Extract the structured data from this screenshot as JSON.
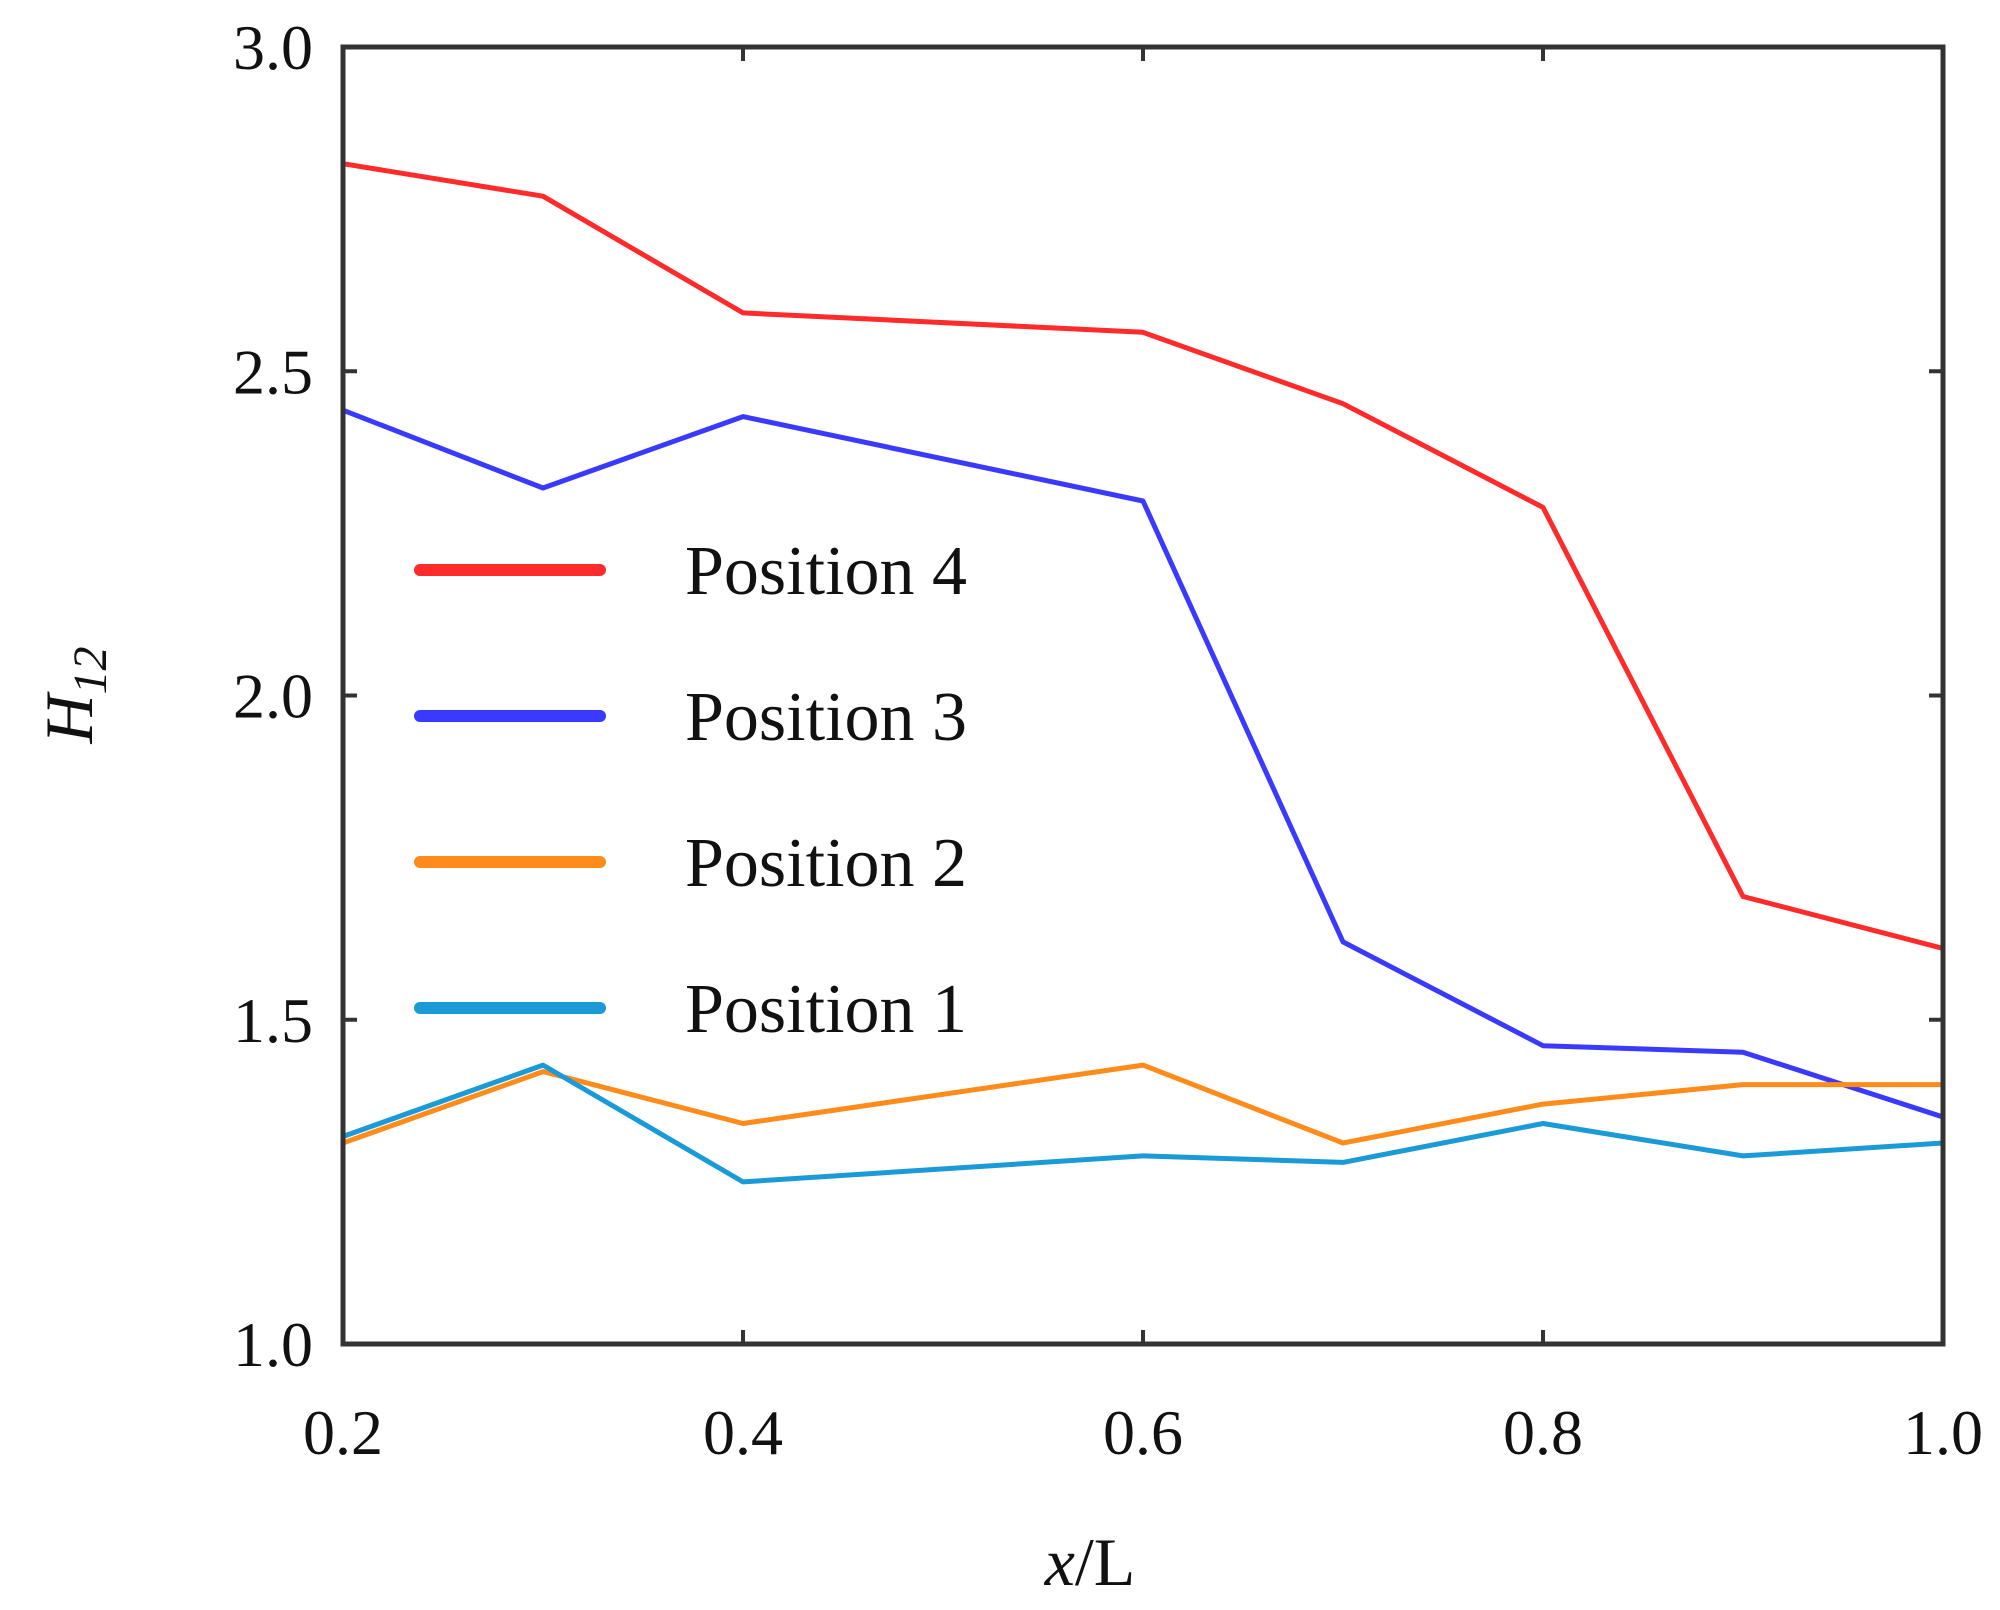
{
  "chart_data": {
    "type": "line",
    "title": "",
    "xlabel_italic": "x",
    "xlabel_rest": "/L",
    "ylabel_main": "H",
    "ylabel_sub": "12",
    "xlim": [
      0.2,
      1.0
    ],
    "ylim": [
      1.0,
      3.0
    ],
    "x_ticks": [
      0.2,
      0.4,
      0.6,
      0.8,
      1.0
    ],
    "x_tick_labels": [
      "0.2",
      "0.4",
      "0.6",
      "0.8",
      "1.0"
    ],
    "y_ticks": [
      1.0,
      1.5,
      2.0,
      2.5,
      3.0
    ],
    "y_tick_labels": [
      "1.0",
      "1.5",
      "2.0",
      "2.5",
      "3.0"
    ],
    "grid": false,
    "legend_position": "center-left",
    "x": [
      0.2,
      0.3,
      0.4,
      0.6,
      0.7,
      0.8,
      0.9,
      1.0
    ],
    "series": [
      {
        "name": "Position 4",
        "color": "#ff2a2a",
        "values": [
          2.82,
          2.77,
          2.59,
          2.56,
          2.45,
          2.29,
          1.69,
          1.61
        ]
      },
      {
        "name": "Position 3",
        "color": "#3a3aff",
        "values": [
          2.44,
          2.32,
          2.43,
          2.3,
          1.62,
          1.46,
          1.45,
          1.35
        ]
      },
      {
        "name": "Position 2",
        "color": "#ff8c1a",
        "values": [
          1.31,
          1.42,
          1.34,
          1.43,
          1.31,
          1.37,
          1.4,
          1.4
        ]
      },
      {
        "name": "Position 1",
        "color": "#1a9ad6",
        "values": [
          1.32,
          1.43,
          1.25,
          1.29,
          1.28,
          1.34,
          1.29,
          1.31
        ]
      }
    ]
  }
}
